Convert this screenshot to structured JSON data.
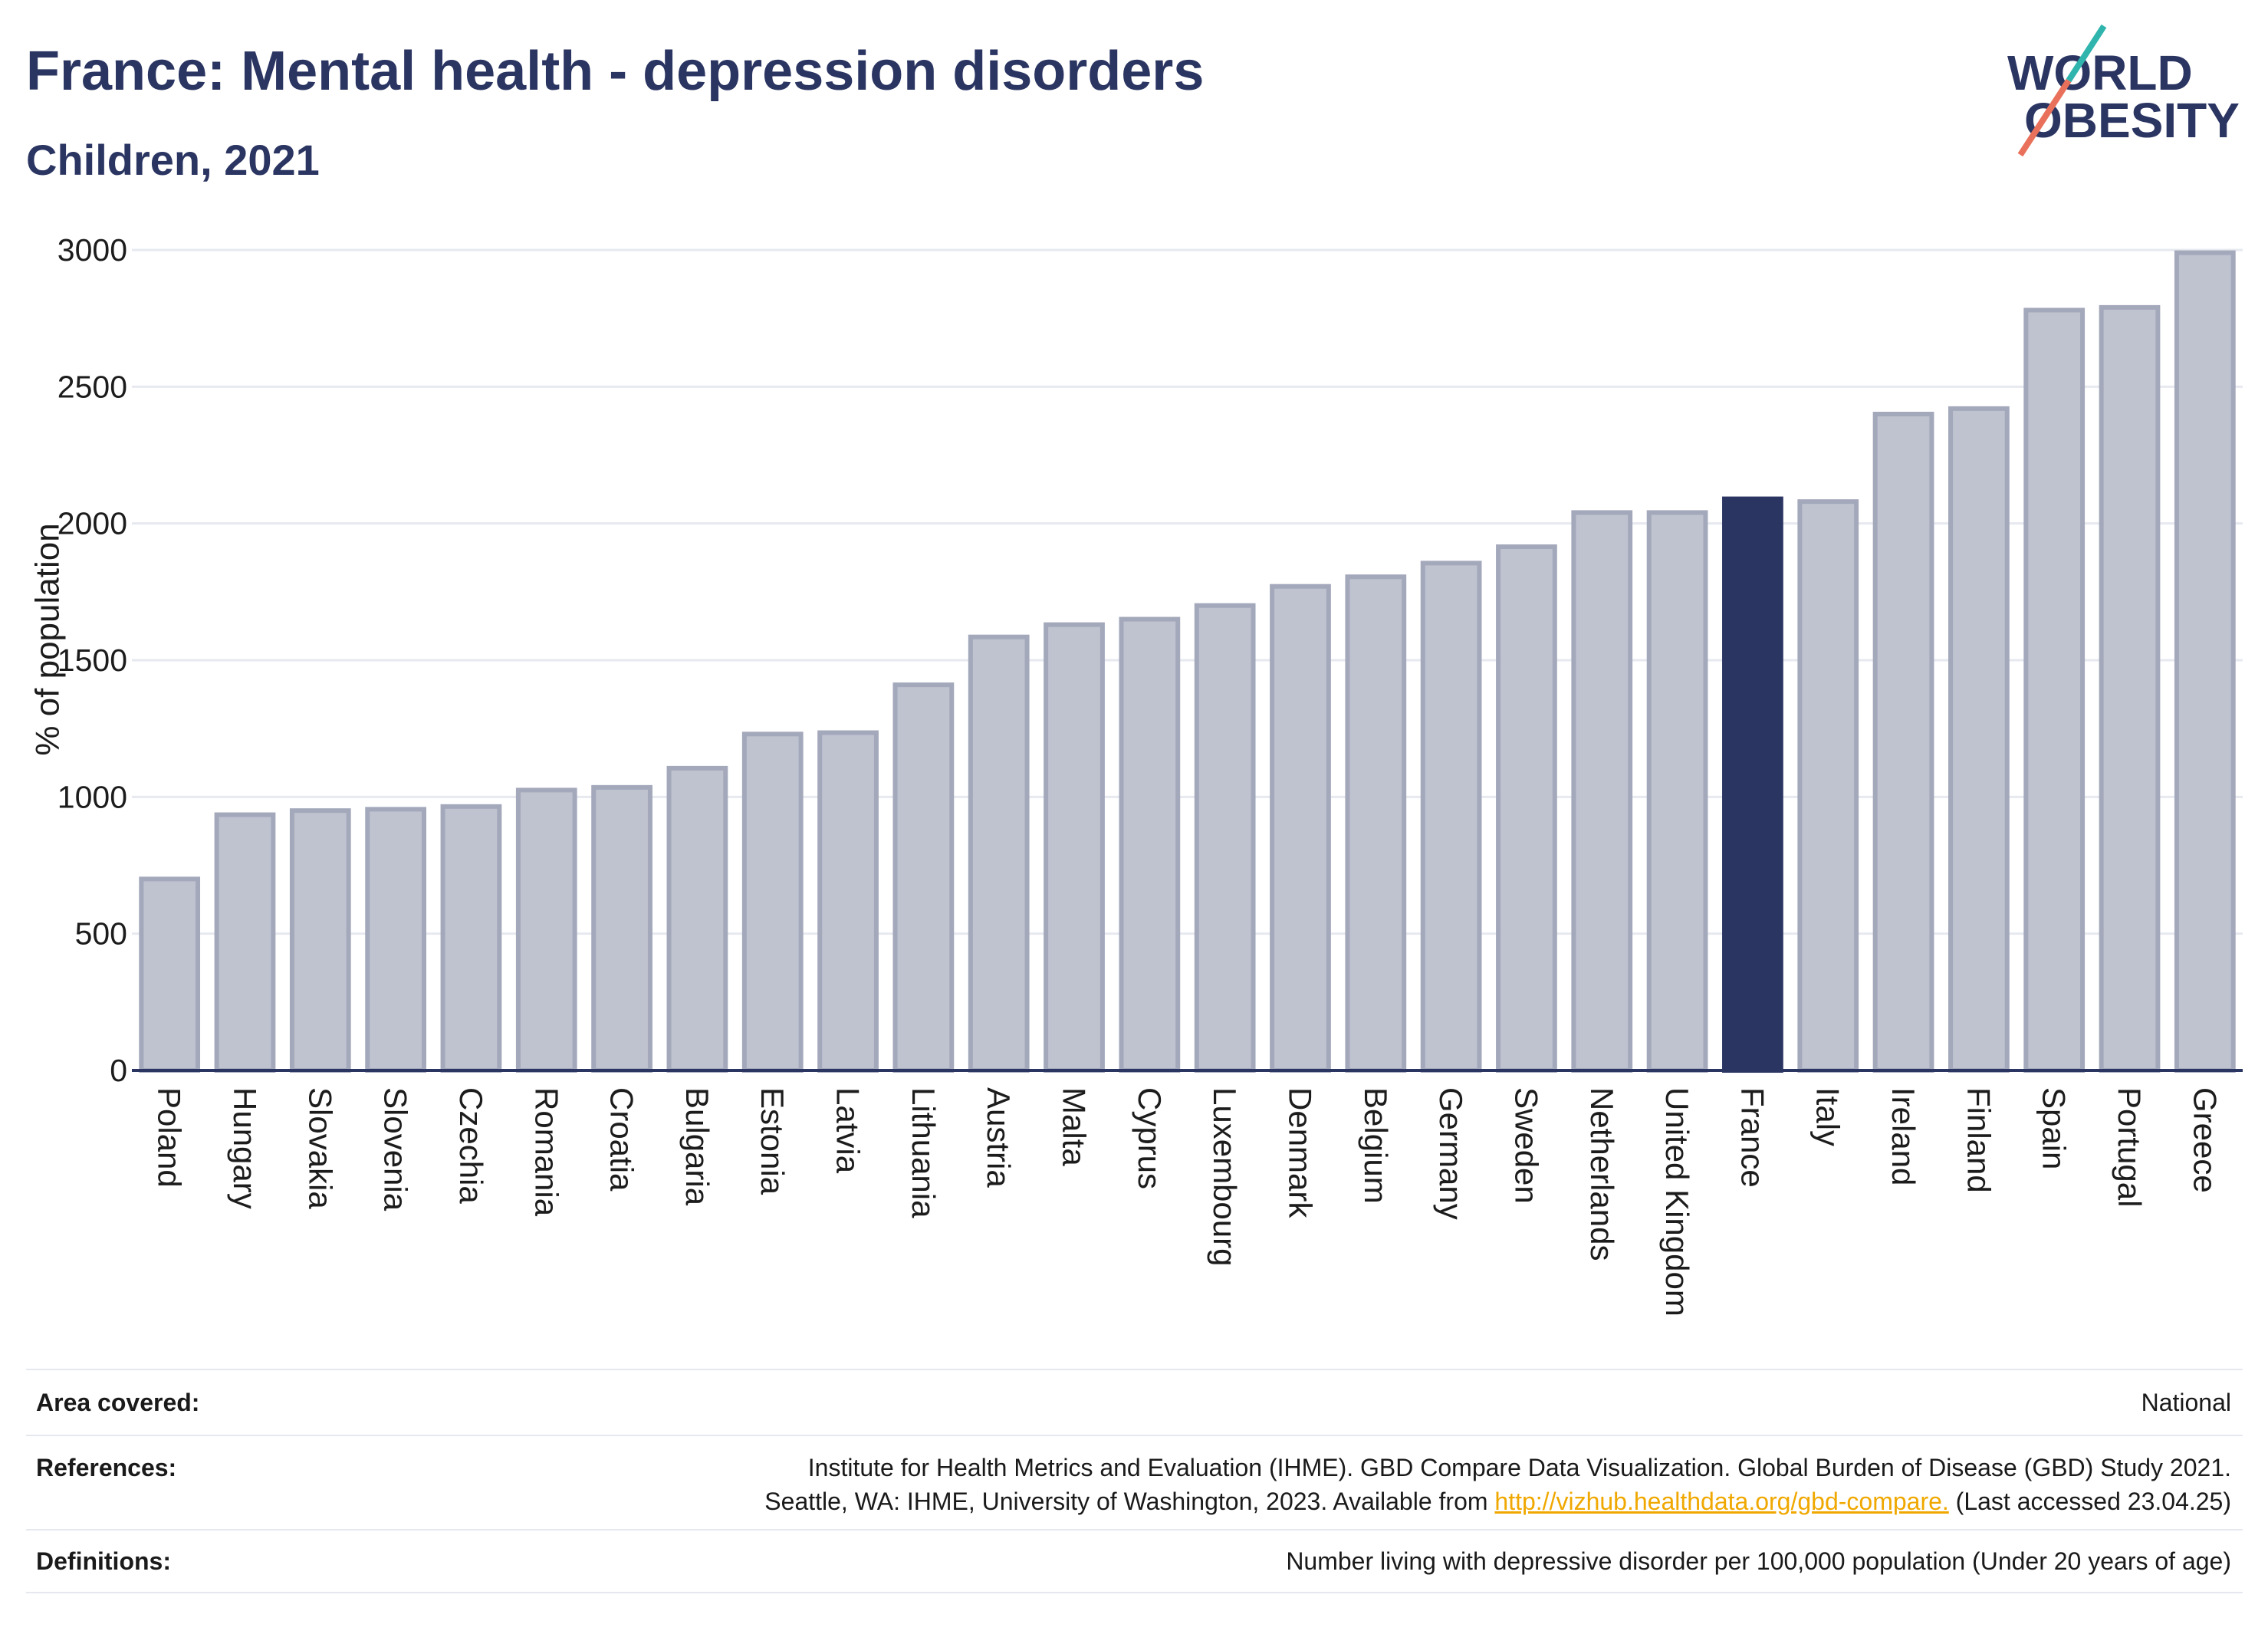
{
  "chart_data": {
    "type": "bar",
    "title": "France: Mental health - depression disorders",
    "subtitle": "Children, 2021",
    "ylabel": "% of population",
    "ylim": [
      0,
      3000
    ],
    "yticks": [
      0,
      500,
      1000,
      1500,
      2000,
      2500,
      3000
    ],
    "grid": true,
    "categories": [
      "Poland",
      "Hungary",
      "Slovakia",
      "Slovenia",
      "Czechia",
      "Romania",
      "Croatia",
      "Bulgaria",
      "Estonia",
      "Latvia",
      "Lithuania",
      "Austria",
      "Malta",
      "Cyprus",
      "Luxembourg",
      "Denmark",
      "Belgium",
      "Germany",
      "Sweden",
      "Netherlands",
      "United Kingdom",
      "France",
      "Italy",
      "Ireland",
      "Finland",
      "Spain",
      "Portugal",
      "Greece"
    ],
    "values": [
      700,
      935,
      950,
      955,
      965,
      1025,
      1035,
      1105,
      1230,
      1235,
      1410,
      1585,
      1630,
      1650,
      1700,
      1770,
      1805,
      1855,
      1915,
      2040,
      2040,
      2090,
      2080,
      2400,
      2420,
      2780,
      2790,
      2990
    ],
    "bar_colors": [
      "#bfc2cf",
      "#bfc2cf",
      "#bfc2cf",
      "#bfc2cf",
      "#bfc2cf",
      "#bfc2cf",
      "#bfc2cf",
      "#bfc2cf",
      "#bfc2cf",
      "#bfc2cf",
      "#bfc2cf",
      "#bfc2cf",
      "#bfc2cf",
      "#bfc2cf",
      "#bfc2cf",
      "#bfc2cf",
      "#bfc2cf",
      "#bfc2cf",
      "#bfc2cf",
      "#bfc2cf",
      "#bfc2cf",
      "#2b3562",
      "#bfc2cf",
      "#bfc2cf",
      "#bfc2cf",
      "#bfc2cf",
      "#bfc2cf",
      "#bfc2cf"
    ],
    "colors": {
      "bar_border": "#a3a8bb",
      "highlight": "#2b3562",
      "axis": "#2b3562",
      "grid": "#e7e9f0"
    }
  },
  "logo": {
    "line1": "WORLD",
    "line2": "OBESITY",
    "colors": {
      "text": "#2b3562",
      "slash_top": "#2fb5ad",
      "slash_bottom": "#e9705b"
    }
  },
  "footer": {
    "area_covered": {
      "label": "Area covered:",
      "value": "National"
    },
    "references": {
      "label": "References:",
      "line1": "Institute for Health Metrics and Evaluation (IHME). GBD Compare Data Visualization. Global Burden of Disease (GBD) Study 2021.",
      "line2_prefix": "Seattle, WA: IHME, University of Washington, 2023. Available from",
      "link": "http://vizhub.healthdata.org/gbd-compare.",
      "line2_suffix": "(Last accessed 23.04.25)"
    },
    "definitions": {
      "label": "Definitions:",
      "value": "Number living with depressive disorder per 100,000 population (Under 20 years of age)"
    }
  },
  "colors": {
    "title": "#2b3562",
    "link": "#f0a800",
    "divider": "#e6e8ef"
  }
}
